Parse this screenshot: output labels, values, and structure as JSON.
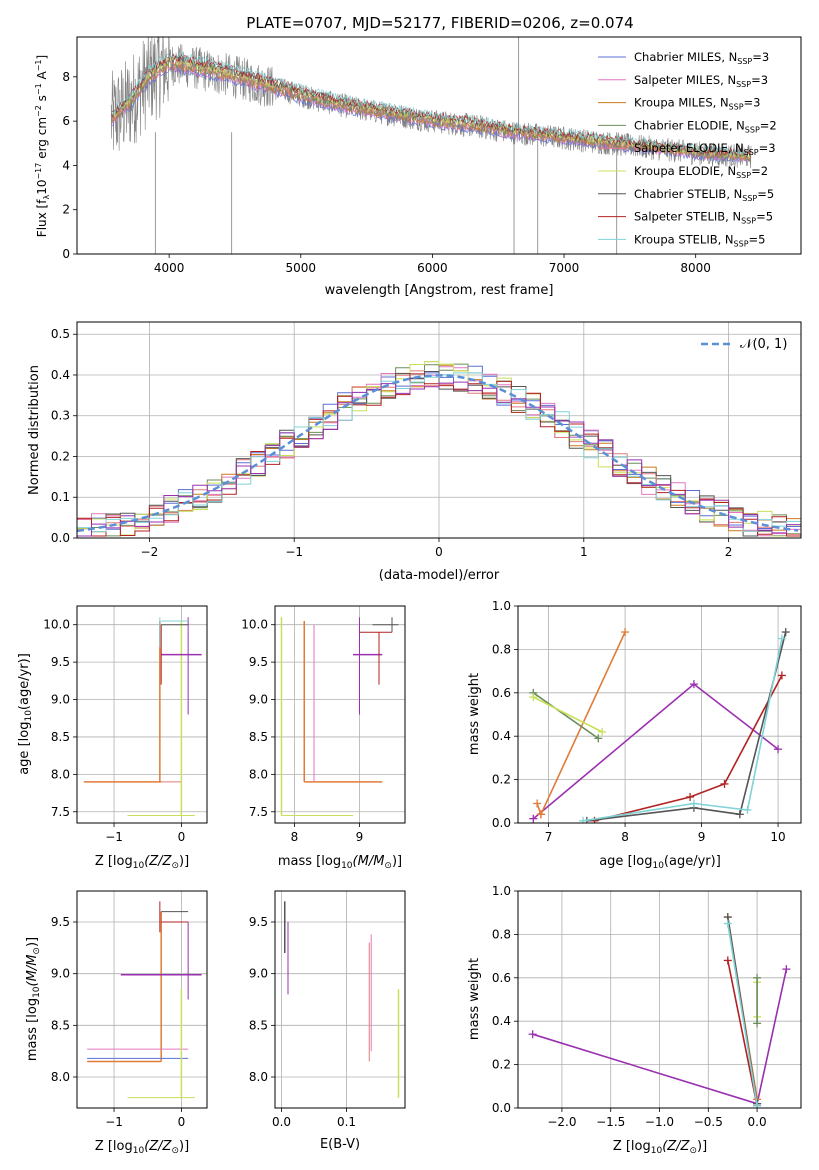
{
  "figure_title": "PLATE=0707, MJD=52177, FIBERID=0206, z=0.074",
  "colors": {
    "chabrier_miles": "#5b6fd6",
    "salpeter_miles": "#e377c2",
    "kroupa_miles": "#c77c1c",
    "chabrier_elodie": "#6b8e5a",
    "salpeter_elodie": "#e07b7b",
    "kroupa_elodie": "#c8e05a",
    "chabrier_stelib": "#555555",
    "salpeter_stelib": "#b22222",
    "kroupa_stelib": "#7fd3d6",
    "data": "#808080",
    "purple": "#9b30b0",
    "orange": "#e07b39",
    "normal": "#5b8fd6"
  },
  "chart_data": [
    {
      "id": "spectrum",
      "type": "line",
      "title": "PLATE=0707, MJD=52177, FIBERID=0206, z=0.074",
      "xlabel": "wavelength [Angstrom, rest frame]",
      "ylabel_main": "Flux [f",
      "ylabel_sub1": "λ",
      "ylabel_mid": "10",
      "ylabel_sup1": "−17",
      "ylabel_rest": " erg cm",
      "ylabel_sup2": "−2",
      "ylabel_s": " s",
      "ylabel_sup3": "−1",
      "ylabel_A": " A",
      "ylabel_sup4": "−1",
      "ylabel_end": "]",
      "xlim": [
        3300,
        8800
      ],
      "ylim": [
        0,
        9.8
      ],
      "xticks": [
        4000,
        5000,
        6000,
        7000,
        8000
      ],
      "yticks": [
        0,
        2,
        4,
        6,
        8
      ],
      "continuum": {
        "x": [
          3550,
          3700,
          3850,
          4000,
          4200,
          4500,
          4800,
          5100,
          5400,
          5700,
          6000,
          6300,
          6600,
          6900,
          7200,
          7500,
          7800,
          8100,
          8400
        ],
        "y": [
          6.0,
          6.8,
          8.0,
          8.6,
          8.4,
          8.0,
          7.5,
          7.0,
          6.6,
          6.3,
          6.0,
          5.8,
          5.5,
          5.3,
          5.1,
          4.9,
          4.7,
          4.5,
          4.4
        ]
      },
      "legend": [
        {
          "name": "Chabrier MILES, N",
          "sub": "SSP",
          "suffix": "=3",
          "color_key": "chabrier_miles"
        },
        {
          "name": "Salpeter MILES, N",
          "sub": "SSP",
          "suffix": "=3",
          "color_key": "salpeter_miles"
        },
        {
          "name": "Kroupa MILES, N",
          "sub": "SSP",
          "suffix": "=3",
          "color_key": "kroupa_miles"
        },
        {
          "name": "Chabrier ELODIE, N",
          "sub": "SSP",
          "suffix": "=2",
          "color_key": "chabrier_elodie"
        },
        {
          "name": "Salpeter ELODIE, N",
          "sub": "SSP",
          "suffix": "=3",
          "color_key": "salpeter_elodie"
        },
        {
          "name": "Kroupa ELODIE, N",
          "sub": "SSP",
          "suffix": "=2",
          "color_key": "kroupa_elodie"
        },
        {
          "name": "Chabrier STELIB, N",
          "sub": "SSP",
          "suffix": "=5",
          "color_key": "chabrier_stelib"
        },
        {
          "name": "Salpeter STELIB, N",
          "sub": "SSP",
          "suffix": "=5",
          "color_key": "salpeter_stelib"
        },
        {
          "name": "Kroupa STELIB, N",
          "sub": "SSP",
          "suffix": "=5",
          "color_key": "kroupa_stelib"
        }
      ]
    },
    {
      "id": "histogram",
      "type": "bar",
      "xlabel": "(data-model)/error",
      "ylabel": "Normed distribution",
      "xlim": [
        -2.5,
        2.5
      ],
      "ylim": [
        0,
        0.53
      ],
      "xticks": [
        -2,
        -1,
        0,
        1,
        2
      ],
      "xtick_labels": [
        "−2",
        "−1",
        "0",
        "1",
        "2"
      ],
      "yticks": [
        0.0,
        0.1,
        0.2,
        0.3,
        0.4,
        0.5
      ],
      "ytick_labels": [
        "0.0",
        "0.1",
        "0.2",
        "0.3",
        "0.4",
        "0.5"
      ],
      "legend_label": "𝒩(0, 1)",
      "grid": true
    },
    {
      "id": "z-age",
      "type": "scatter",
      "xlabel_main": "Z [log",
      "xlabel_sub": "10",
      "xlabel_end": "(Z/Z",
      "xlabel_sun": "⊙",
      "xlabel_close": ")]",
      "ylabel_main": "age  [log",
      "ylabel_sub": "10",
      "ylabel_end": "(age/yr)]",
      "xlim": [
        -1.55,
        0.38
      ],
      "ylim": [
        7.35,
        10.25
      ],
      "xticks": [
        -1,
        0
      ],
      "xtick_labels": [
        "−1",
        "0"
      ],
      "yticks": [
        7.5,
        8.0,
        8.5,
        9.0,
        9.5,
        10.0
      ],
      "ytick_labels": [
        "7.5",
        "8.0",
        "8.5",
        "9.0",
        "9.5",
        "10.0"
      ]
    },
    {
      "id": "mass-age",
      "type": "scatter",
      "xlabel_main": "mass [log",
      "xlabel_sub": "10",
      "xlabel_end": "(M/M",
      "xlabel_sun": "⊙",
      "xlabel_close": ")]",
      "xlim": [
        7.7,
        9.7
      ],
      "ylim": [
        7.35,
        10.25
      ],
      "xticks": [
        8,
        9
      ],
      "xtick_labels": [
        "8",
        "9"
      ],
      "yticks": [
        7.5,
        8.0,
        8.5,
        9.0,
        9.5,
        10.0
      ],
      "ytick_labels": [
        "7.5",
        "8.0",
        "8.5",
        "9.0",
        "9.5",
        "10.0"
      ]
    },
    {
      "id": "age-weight",
      "type": "line",
      "xlabel_main": "age  [log",
      "xlabel_sub": "10",
      "xlabel_end": "(age/yr)]",
      "ylabel": "mass weight",
      "xlim": [
        6.6,
        10.3
      ],
      "ylim": [
        0,
        1.0
      ],
      "xticks": [
        7,
        8,
        9,
        10
      ],
      "xtick_labels": [
        "7",
        "8",
        "9",
        "10"
      ],
      "yticks": [
        0.0,
        0.2,
        0.4,
        0.6,
        0.8,
        1.0
      ],
      "ytick_labels": [
        "0.0",
        "0.2",
        "0.4",
        "0.6",
        "0.8",
        "1.0"
      ],
      "series": [
        {
          "color_key": "purple",
          "x": [
            6.8,
            8.9,
            10.0
          ],
          "y": [
            0.02,
            0.64,
            0.34
          ]
        },
        {
          "color_key": "orange",
          "x": [
            6.9,
            8.0
          ],
          "y": [
            0.04,
            0.88
          ]
        },
        {
          "color_key": "orange",
          "x": [
            6.85,
            6.9
          ],
          "y": [
            0.09,
            0.04
          ]
        },
        {
          "color_key": "chabrier_elodie",
          "x": [
            6.8,
            7.65
          ],
          "y": [
            0.6,
            0.39
          ]
        },
        {
          "color_key": "kroupa_elodie",
          "x": [
            6.8,
            7.7
          ],
          "y": [
            0.58,
            0.42
          ]
        },
        {
          "color_key": "salpeter_stelib",
          "x": [
            7.6,
            8.85,
            9.3,
            10.05
          ],
          "y": [
            0.01,
            0.12,
            0.18,
            0.68
          ]
        },
        {
          "color_key": "chabrier_stelib",
          "x": [
            7.5,
            8.9,
            9.5,
            10.1
          ],
          "y": [
            0.01,
            0.07,
            0.04,
            0.88
          ]
        },
        {
          "color_key": "kroupa_stelib",
          "x": [
            7.45,
            8.9,
            9.6,
            10.05
          ],
          "y": [
            0.01,
            0.09,
            0.06,
            0.85
          ]
        }
      ]
    },
    {
      "id": "z-mass",
      "type": "scatter",
      "xlabel_main": "Z [log",
      "xlabel_sub": "10",
      "xlabel_end": "(Z/Z",
      "xlabel_sun": "⊙",
      "xlabel_close": ")]",
      "ylabel_main": "mass [log",
      "ylabel_sub": "10",
      "ylabel_end": "(M/M",
      "ylabel_sun": "⊙",
      "ylabel_close": ")]",
      "xlim": [
        -1.55,
        0.38
      ],
      "ylim": [
        7.7,
        9.8
      ],
      "xticks": [
        -1,
        0
      ],
      "xtick_labels": [
        "−1",
        "0"
      ],
      "yticks": [
        8.0,
        8.5,
        9.0,
        9.5
      ],
      "ytick_labels": [
        "8.0",
        "8.5",
        "9.0",
        "9.5"
      ]
    },
    {
      "id": "ebv-mass",
      "type": "scatter",
      "xlabel": "E(B-V)",
      "xlim": [
        -0.01,
        0.19
      ],
      "ylim": [
        7.7,
        9.8
      ],
      "xticks": [
        0.0,
        0.1
      ],
      "xtick_labels": [
        "0.0",
        "0.1"
      ],
      "yticks": [
        8.0,
        8.5,
        9.0,
        9.5
      ],
      "ytick_labels": [
        "8.0",
        "8.5",
        "9.0",
        "9.5"
      ]
    },
    {
      "id": "z-weight",
      "type": "line",
      "xlabel_main": "Z [log",
      "xlabel_sub": "10",
      "xlabel_end": "(Z/Z",
      "xlabel_sun": "⊙",
      "xlabel_close": ")]",
      "ylabel": "mass weight",
      "xlim": [
        -2.45,
        0.45
      ],
      "ylim": [
        0,
        1.0
      ],
      "xticks": [
        -2.0,
        -1.5,
        -1.0,
        -0.5,
        0.0
      ],
      "xtick_labels": [
        "−2.0",
        "−1.5",
        "−1.0",
        "−0.5",
        "0.0"
      ],
      "yticks": [
        0.0,
        0.2,
        0.4,
        0.6,
        0.8,
        1.0
      ],
      "ytick_labels": [
        "0.0",
        "0.2",
        "0.4",
        "0.6",
        "0.8",
        "1.0"
      ],
      "series": [
        {
          "color_key": "purple",
          "x": [
            -2.3,
            0.0,
            0.3
          ],
          "y": [
            0.34,
            0.02,
            0.64
          ]
        },
        {
          "color_key": "orange",
          "x": [
            -0.3,
            0.0
          ],
          "y": [
            0.88,
            0.04
          ]
        },
        {
          "color_key": "salpeter_stelib",
          "x": [
            -0.3,
            0.0
          ],
          "y": [
            0.68,
            0.01
          ]
        },
        {
          "color_key": "chabrier_stelib",
          "x": [
            -0.3,
            0.0
          ],
          "y": [
            0.88,
            0.02
          ]
        },
        {
          "color_key": "kroupa_stelib",
          "x": [
            -0.3,
            0.0
          ],
          "y": [
            0.85,
            0.01
          ]
        },
        {
          "color_key": "kroupa_elodie",
          "x": [
            0.0,
            0.0
          ],
          "y": [
            0.58,
            0.42
          ]
        },
        {
          "color_key": "chabrier_elodie",
          "x": [
            0.0,
            0.0
          ],
          "y": [
            0.6,
            0.39
          ]
        }
      ]
    }
  ]
}
